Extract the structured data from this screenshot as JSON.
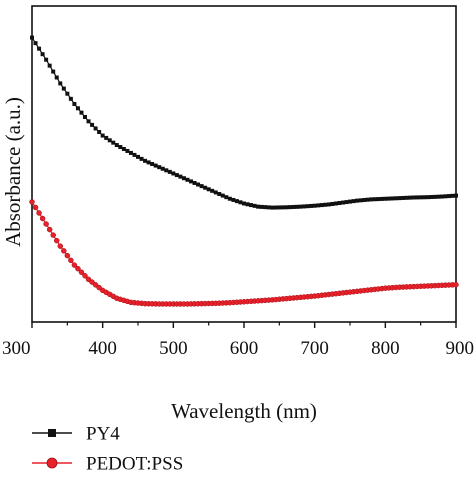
{
  "chart_data": {
    "type": "line",
    "xlabel": "Wavelength (nm)",
    "ylabel": "Absorbance (a.u.)",
    "xlim": [
      300,
      900
    ],
    "ylim": [
      0,
      1
    ],
    "y_tick_labels_shown": false,
    "x_ticks": [
      300,
      400,
      500,
      600,
      700,
      800,
      900
    ],
    "x_tick_labels": [
      "300",
      "400",
      "500",
      "600",
      "700",
      "800",
      "900"
    ],
    "grid": false,
    "legend_position": "below-plot",
    "series": [
      {
        "name": "PY4",
        "color": "#111111",
        "marker": "square",
        "x": [
          300,
          320,
          340,
          360,
          380,
          400,
          420,
          440,
          460,
          480,
          500,
          520,
          540,
          560,
          580,
          600,
          620,
          640,
          660,
          680,
          700,
          720,
          740,
          760,
          780,
          800,
          820,
          840,
          860,
          880,
          900
        ],
        "y": [
          0.9,
          0.83,
          0.755,
          0.69,
          0.635,
          0.59,
          0.56,
          0.535,
          0.51,
          0.49,
          0.47,
          0.45,
          0.43,
          0.41,
          0.39,
          0.375,
          0.365,
          0.362,
          0.363,
          0.365,
          0.368,
          0.372,
          0.378,
          0.384,
          0.388,
          0.39,
          0.392,
          0.394,
          0.395,
          0.397,
          0.4
        ]
      },
      {
        "name": "PEDOT:PSS",
        "color": "#e8202a",
        "marker": "circle",
        "x": [
          300,
          320,
          340,
          360,
          380,
          400,
          420,
          440,
          460,
          480,
          500,
          520,
          540,
          560,
          580,
          600,
          620,
          640,
          660,
          680,
          700,
          720,
          740,
          760,
          780,
          800,
          820,
          840,
          860,
          880,
          900
        ],
        "y": [
          0.38,
          0.31,
          0.24,
          0.18,
          0.135,
          0.1,
          0.075,
          0.062,
          0.058,
          0.057,
          0.057,
          0.057,
          0.058,
          0.059,
          0.061,
          0.064,
          0.067,
          0.07,
          0.074,
          0.078,
          0.082,
          0.087,
          0.092,
          0.097,
          0.102,
          0.107,
          0.11,
          0.112,
          0.114,
          0.116,
          0.118
        ]
      }
    ]
  }
}
